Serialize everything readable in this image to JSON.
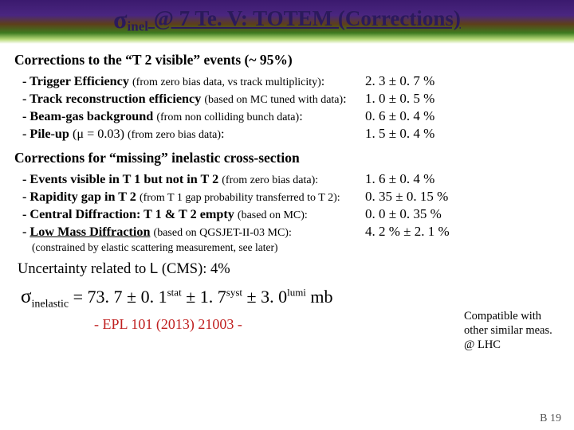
{
  "title": {
    "sigma": "σ",
    "inel": "inel",
    "rest": " @ 7 Te. V: TOTEM (Corrections)"
  },
  "section1": {
    "head": "Corrections to the “T 2 visible” events (~ 95%)",
    "rows": [
      {
        "b": "- Trigger Efficiency ",
        "det": "(from zero bias data, vs track multiplicity)",
        "tail": ":",
        "val": "2. 3 ± 0. 7 %"
      },
      {
        "b": "- Track reconstruction efficiency ",
        "det": "(based on MC tuned with data)",
        "tail": ":",
        "val": "1. 0 ± 0. 5 %"
      },
      {
        "b": "- Beam-gas background ",
        "det": "(from non colliding bunch data)",
        "tail": ":",
        "val": "0. 6 ± 0. 4 %"
      },
      {
        "b": "- Pile-up ",
        "mid": "(μ = 0.03) ",
        "det": "(from zero bias data)",
        "tail": ":",
        "val": "1. 5 ± 0. 4 %"
      }
    ]
  },
  "section2": {
    "head": "Corrections for “missing” inelastic cross-section",
    "rows": [
      {
        "b": "- Events visible in T 1 but not in T 2 ",
        "det": "(from zero bias data):",
        "val": "1. 6 ± 0. 4 %"
      },
      {
        "b": "- Rapidity gap in T 2 ",
        "det": "(from T 1 gap probability transferred to T 2):",
        "val": "0. 35 ± 0. 15 %"
      },
      {
        "b": "- Central Diffraction: T 1 & T 2 empty ",
        "det": "(based on MC):",
        "val": "0. 0 ± 0. 35 %"
      },
      {
        "b": "- <u>Low Mass Diffraction</u> ",
        "det": "(based on QGSJET-II-03 MC):",
        "val": "4. 2 % ± 2. 1 %"
      }
    ],
    "constraint": "(constrained by elastic scattering measurement, see later)"
  },
  "lumi": "Uncertainty related to L (CMS): 4%",
  "note": "Compatible with other similar meas. @ LHC",
  "result": {
    "sigma": "σ",
    "sub": "inelastic",
    "eq": " = 73. 7 ± 0. 1",
    "stat": "stat",
    "pm1": " ± 1. 7",
    "syst": "syst",
    "pm2": " ± 3. 0",
    "lumi": "lumi",
    "mb": " mb"
  },
  "citation": "- EPL 101 (2013) 21003 -",
  "page": "B 19"
}
